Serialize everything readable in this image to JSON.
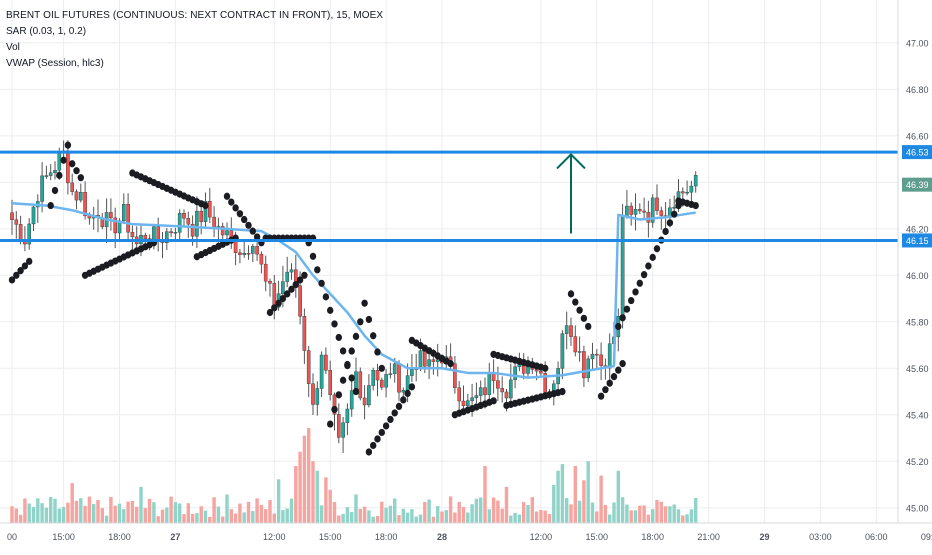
{
  "legend": {
    "title": "BRENT OIL FUTURES (CONTINUOUS: NEXT CONTRACT IN FRONT), 15, MOEX",
    "sar": "SAR (0.03, 1, 0.2)",
    "vol": "Vol",
    "vwap": "VWAP (Session, hlc3)"
  },
  "colors": {
    "up": "#26a69a",
    "down": "#ef5350",
    "up_volume": "#8fd3c9",
    "down_volume": "#f5a4a0",
    "sar_dot": "#1a1c22",
    "vwap": "#6db5ef",
    "hline": "#1e88e5",
    "arrow": "#00695c",
    "grid": "#ebedf0",
    "label_bg_blue": "#1e88e5",
    "label_bg_green": "#5f9e8f"
  },
  "chart_data": {
    "type": "candlestick",
    "price_axis": {
      "ylim": [
        44.9,
        47.15
      ],
      "ticks": [
        "47.00",
        "46.80",
        "46.60",
        "46.40",
        "46.20",
        "46.00",
        "45.80",
        "45.60",
        "45.40",
        "45.20",
        "45.00"
      ],
      "tick_values": [
        47.0,
        46.8,
        46.6,
        46.4,
        46.2,
        46.0,
        45.8,
        45.6,
        45.4,
        45.2,
        45.0
      ]
    },
    "time_axis": {
      "labels": [
        "00",
        "15:00",
        "18:00",
        "27",
        "12:00",
        "15:00",
        "18:00",
        "28",
        "12:00",
        "15:00",
        "18:00",
        "21:00",
        "29",
        "03:00",
        "06:00",
        "09:00"
      ],
      "label_bar_index": [
        0,
        12,
        25,
        38,
        61,
        74,
        87,
        100,
        123,
        136,
        149,
        162,
        175,
        188,
        201,
        214
      ],
      "bold": [
        "27",
        "28",
        "29"
      ]
    },
    "horizontal_lines": [
      {
        "price": 46.53,
        "label": "46.53"
      },
      {
        "price": 46.15,
        "label": "46.15"
      }
    ],
    "current_price_label": {
      "price": 46.39,
      "label": "46.39"
    },
    "arrow": {
      "bar_index": 130,
      "from_price": 46.18,
      "to_price": 46.52
    },
    "anchors": [
      [
        0,
        46.24
      ],
      [
        3,
        46.16
      ],
      [
        6,
        46.36
      ],
      [
        9,
        46.45
      ],
      [
        12,
        46.52
      ],
      [
        14,
        46.36
      ],
      [
        16,
        46.34
      ],
      [
        18,
        46.24
      ],
      [
        20,
        46.28
      ],
      [
        23,
        46.2
      ],
      [
        26,
        46.26
      ],
      [
        29,
        46.13
      ],
      [
        31,
        46.18
      ],
      [
        34,
        46.15
      ],
      [
        37,
        46.2
      ],
      [
        40,
        46.26
      ],
      [
        42,
        46.21
      ],
      [
        45,
        46.28
      ],
      [
        48,
        46.2
      ],
      [
        51,
        46.15
      ],
      [
        54,
        46.1
      ],
      [
        56,
        46.17
      ],
      [
        59,
        45.96
      ],
      [
        61,
        45.88
      ],
      [
        64,
        46.02
      ],
      [
        66,
        45.96
      ],
      [
        68,
        45.7
      ],
      [
        70,
        45.42
      ],
      [
        72,
        45.68
      ],
      [
        74,
        45.45
      ],
      [
        76,
        45.26
      ],
      [
        78,
        45.4
      ],
      [
        80,
        45.58
      ],
      [
        82,
        45.46
      ],
      [
        84,
        45.62
      ],
      [
        86,
        45.5
      ],
      [
        88,
        45.6
      ],
      [
        91,
        45.52
      ],
      [
        94,
        45.64
      ],
      [
        97,
        45.6
      ],
      [
        100,
        45.66
      ],
      [
        103,
        45.54
      ],
      [
        106,
        45.44
      ],
      [
        109,
        45.48
      ],
      [
        112,
        45.58
      ],
      [
        115,
        45.52
      ],
      [
        118,
        45.6
      ],
      [
        121,
        45.64
      ],
      [
        123,
        45.58
      ],
      [
        125,
        45.5
      ],
      [
        127,
        45.62
      ],
      [
        129,
        45.82
      ],
      [
        131,
        45.72
      ],
      [
        133,
        45.6
      ],
      [
        135,
        45.7
      ],
      [
        137,
        45.62
      ],
      [
        139,
        45.68
      ],
      [
        141,
        45.8
      ],
      [
        142,
        46.27
      ],
      [
        144,
        46.24
      ],
      [
        146,
        46.3
      ],
      [
        148,
        46.27
      ],
      [
        150,
        46.32
      ],
      [
        152,
        46.28
      ],
      [
        154,
        46.34
      ],
      [
        156,
        46.36
      ],
      [
        158,
        46.38
      ],
      [
        159,
        46.39
      ]
    ],
    "bar_count": 160,
    "vwap_points": [
      [
        0,
        46.31
      ],
      [
        8,
        46.3
      ],
      [
        14,
        46.28
      ],
      [
        22,
        46.24
      ],
      [
        28,
        46.22
      ],
      [
        40,
        46.21
      ],
      [
        50,
        46.2
      ],
      [
        58,
        46.19
      ],
      [
        62,
        46.15
      ],
      [
        66,
        46.1
      ],
      [
        70,
        46.0
      ],
      [
        74,
        45.92
      ],
      [
        78,
        45.84
      ],
      [
        82,
        45.74
      ],
      [
        86,
        45.66
      ],
      [
        92,
        45.6
      ],
      [
        100,
        45.6
      ],
      [
        106,
        45.58
      ],
      [
        112,
        45.58
      ],
      [
        120,
        45.56
      ],
      [
        128,
        45.57
      ],
      [
        134,
        45.59
      ],
      [
        140,
        45.61
      ],
      [
        141,
        46.26
      ],
      [
        146,
        46.24
      ],
      [
        152,
        46.25
      ],
      [
        159,
        46.27
      ]
    ],
    "sar_segments": [
      {
        "start": 0,
        "end": 4,
        "from": 45.98,
        "to": 46.06
      },
      {
        "start": 9,
        "end": 13,
        "from": 46.3,
        "to": 46.56
      },
      {
        "start": 14,
        "end": 16,
        "from": 46.48,
        "to": 46.42
      },
      {
        "start": 17,
        "end": 33,
        "from": 46.0,
        "to": 46.14
      },
      {
        "start": 28,
        "end": 45,
        "from": 46.44,
        "to": 46.3
      },
      {
        "start": 43,
        "end": 52,
        "from": 46.08,
        "to": 46.16
      },
      {
        "start": 50,
        "end": 58,
        "from": 46.34,
        "to": 46.14
      },
      {
        "start": 59,
        "end": 70,
        "from": 46.16,
        "to": 46.16
      },
      {
        "start": 60,
        "end": 68,
        "from": 45.84,
        "to": 46.0
      },
      {
        "start": 69,
        "end": 80,
        "from": 46.14,
        "to": 45.5
      },
      {
        "start": 74,
        "end": 81,
        "from": 45.36,
        "to": 45.8
      },
      {
        "start": 82,
        "end": 86,
        "from": 45.88,
        "to": 45.6
      },
      {
        "start": 83,
        "end": 93,
        "from": 45.24,
        "to": 45.52
      },
      {
        "start": 93,
        "end": 102,
        "from": 45.72,
        "to": 45.62
      },
      {
        "start": 103,
        "end": 112,
        "from": 45.4,
        "to": 45.46
      },
      {
        "start": 112,
        "end": 124,
        "from": 45.66,
        "to": 45.6
      },
      {
        "start": 115,
        "end": 128,
        "from": 45.44,
        "to": 45.5
      },
      {
        "start": 130,
        "end": 134,
        "from": 45.92,
        "to": 45.78
      },
      {
        "start": 137,
        "end": 142,
        "from": 45.48,
        "to": 45.62
      },
      {
        "start": 141,
        "end": 155,
        "from": 45.78,
        "to": 46.3
      },
      {
        "start": 155,
        "end": 159,
        "from": 46.32,
        "to": 46.3
      }
    ],
    "volume_spikes": [
      [
        14,
        0.42
      ],
      [
        30,
        0.38
      ],
      [
        38,
        0.22
      ],
      [
        50,
        0.3
      ],
      [
        62,
        0.46
      ],
      [
        66,
        0.6
      ],
      [
        67,
        0.75
      ],
      [
        68,
        0.92
      ],
      [
        69,
        1.0
      ],
      [
        70,
        0.65
      ],
      [
        71,
        0.55
      ],
      [
        73,
        0.48
      ],
      [
        74,
        0.35
      ],
      [
        75,
        0.22
      ],
      [
        80,
        0.3
      ],
      [
        102,
        0.28
      ],
      [
        110,
        0.6
      ],
      [
        115,
        0.38
      ],
      [
        126,
        0.4
      ],
      [
        127,
        0.55
      ],
      [
        128,
        0.62
      ],
      [
        131,
        0.6
      ],
      [
        133,
        0.45
      ],
      [
        134,
        0.65
      ],
      [
        137,
        0.5
      ],
      [
        141,
        0.55
      ]
    ]
  }
}
